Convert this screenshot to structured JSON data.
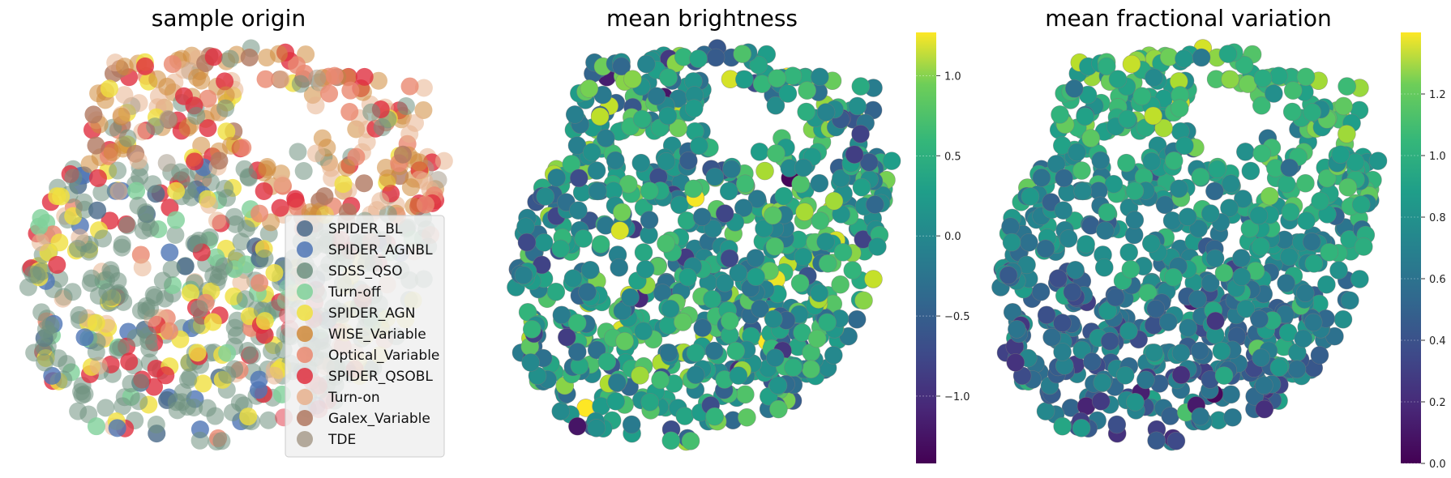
{
  "chart_data": [
    {
      "type": "scatter",
      "title": "sample origin",
      "grid": false,
      "axes_visible": false,
      "legend_position": "lower-right",
      "series": [
        {
          "name": "SPIDER_BL",
          "color": "#4a6a8a"
        },
        {
          "name": "SPIDER_AGNBL",
          "color": "#4f75b5"
        },
        {
          "name": "SDSS_QSO",
          "color": "#6f9180"
        },
        {
          "name": "Turn-off",
          "color": "#7fd19a"
        },
        {
          "name": "SPIDER_AGN",
          "color": "#f0e040"
        },
        {
          "name": "WISE_Variable",
          "color": "#d08a3a"
        },
        {
          "name": "Optical_Variable",
          "color": "#ea8870"
        },
        {
          "name": "SPIDER_QSOBL",
          "color": "#e03040"
        },
        {
          "name": "Turn-on",
          "color": "#e8b28e"
        },
        {
          "name": "Galex_Variable",
          "color": "#b07860"
        },
        {
          "name": "TDE",
          "color": "#a89c8c"
        }
      ]
    },
    {
      "type": "scatter",
      "title": "mean brightness",
      "colormap": "viridis",
      "grid": false,
      "axes_visible": false,
      "colorbar": {
        "min": -1.42,
        "max": 1.27,
        "ticks": [
          1.0,
          0.5,
          0.0,
          -0.5,
          -1.0
        ],
        "tick_labels": [
          "1.0",
          "0.5",
          "0.0",
          "−0.5",
          "−1.0"
        ]
      }
    },
    {
      "type": "scatter",
      "title": "mean fractional variation",
      "colormap": "viridis",
      "grid": false,
      "axes_visible": false,
      "colorbar": {
        "min": 0.0,
        "max": 1.4,
        "ticks": [
          1.2,
          1.0,
          0.8,
          0.6,
          0.4,
          0.2,
          0.0
        ],
        "tick_labels": [
          "1.2",
          "1.0",
          "0.8",
          "0.6",
          "0.4",
          "0.2",
          "0.0"
        ]
      }
    }
  ]
}
